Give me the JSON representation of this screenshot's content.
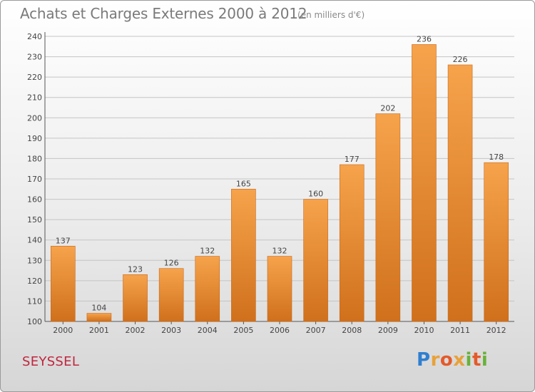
{
  "header": {
    "title": "Achats et Charges Externes 2000 à 2012",
    "subtitle": "(en milliers d'€)"
  },
  "footer": {
    "location": "SEYSSEL",
    "brand": "Proxiti"
  },
  "colors": {
    "bar_top": "#f6a34c",
    "bar_bottom": "#d0701c",
    "location_text": "#c0263f"
  },
  "chart_data": {
    "type": "bar",
    "title": "Achats et Charges Externes 2000 à 2012",
    "subtitle": "(en milliers d'€)",
    "categories": [
      "2000",
      "2001",
      "2002",
      "2003",
      "2004",
      "2005",
      "2006",
      "2007",
      "2008",
      "2009",
      "2010",
      "2011",
      "2012"
    ],
    "values": [
      137,
      104,
      123,
      126,
      132,
      165,
      132,
      160,
      177,
      202,
      236,
      226,
      178
    ],
    "ylim": [
      100,
      240
    ],
    "yticks": [
      100,
      110,
      120,
      130,
      140,
      150,
      160,
      170,
      180,
      190,
      200,
      210,
      220,
      230,
      240
    ],
    "grid": true,
    "legend": "none"
  }
}
